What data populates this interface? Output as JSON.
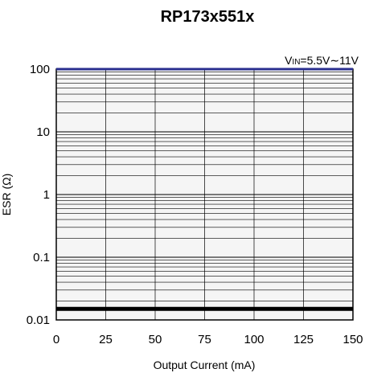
{
  "chart_data": {
    "type": "line",
    "title": "RP173x551x",
    "xlabel": "Output Current (mA)",
    "ylabel": "ESR (Ω)",
    "xlim": [
      0,
      150
    ],
    "ylim": [
      0.01,
      100
    ],
    "y_scale": "log",
    "x_ticks": [
      "0",
      "25",
      "50",
      "75",
      "100",
      "125",
      "150"
    ],
    "y_ticks": [
      "0.01",
      "0.1",
      "1",
      "10",
      "100"
    ],
    "grid": true,
    "annotation": {
      "prefix": "V",
      "subscript": "IN",
      "suffix": "=5.5V∼11V"
    },
    "series": [
      {
        "color": "#2a2f8f",
        "x": [
          0,
          150
        ],
        "y": [
          100,
          100
        ]
      },
      {
        "color": "#000000",
        "x": [
          0,
          150
        ],
        "y": [
          0.015,
          0.015
        ]
      }
    ]
  }
}
